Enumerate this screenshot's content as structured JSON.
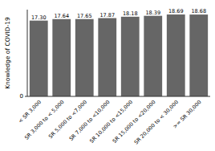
{
  "chart_data": {
    "type": "bar",
    "categories": [
      "< SR 3,000",
      "SR 3,000 to < 5,000",
      "SR 5,000 to <7,000",
      "SR 7,000 to <10,000",
      "SR 10,000 to <15,000",
      "SR 15,000 to <20,000",
      "SR 20,000 to < 30,000",
      ">= SR 30,000"
    ],
    "values": [
      17.3,
      17.64,
      17.65,
      17.87,
      18.18,
      18.39,
      18.69,
      18.68
    ],
    "value_labels": [
      "17.30",
      "17.64",
      "17.65",
      "17.87",
      "18.18",
      "18.39",
      "18.69",
      "18.68"
    ],
    "data_labels": true,
    "color": "#666666",
    "y_label": "Knowledge of COVID-19",
    "ylim": [
      0,
      19.8
    ],
    "yticks": [
      0
    ],
    "grid": false
  }
}
